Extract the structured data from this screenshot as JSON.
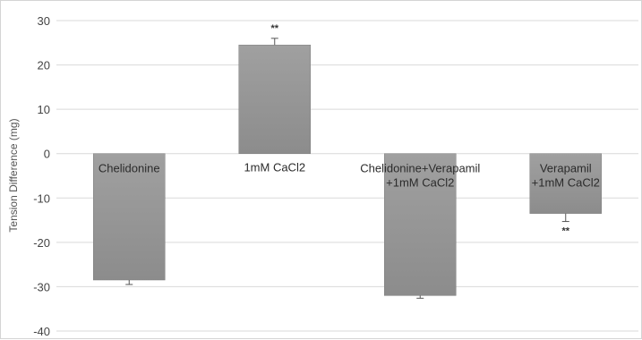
{
  "chart_data": {
    "type": "bar",
    "title": "",
    "xlabel": "",
    "ylabel": "Tension Difference (mg)",
    "ylim": [
      -40,
      30
    ],
    "yticks": [
      30,
      20,
      10,
      0,
      -10,
      -20,
      -30,
      -40
    ],
    "grid": true,
    "legend": "none",
    "categories": [
      [
        "Chelidonine"
      ],
      [
        "1mM CaCl2"
      ],
      [
        "Chelidonine+Verapamil",
        "+1mM CaCl2"
      ],
      [
        "Verapamil",
        "+1mM CaCl2"
      ]
    ],
    "values": [
      -28.5,
      24.5,
      -32,
      -13.5
    ],
    "errors": [
      1,
      1.5,
      0.6,
      1.8
    ],
    "significance": [
      "",
      "**",
      "",
      "**"
    ],
    "colors": {
      "bar_top": "#a0a0a0",
      "bar_bottom": "#8c8c8c",
      "grid": "#d9d9d9"
    }
  }
}
